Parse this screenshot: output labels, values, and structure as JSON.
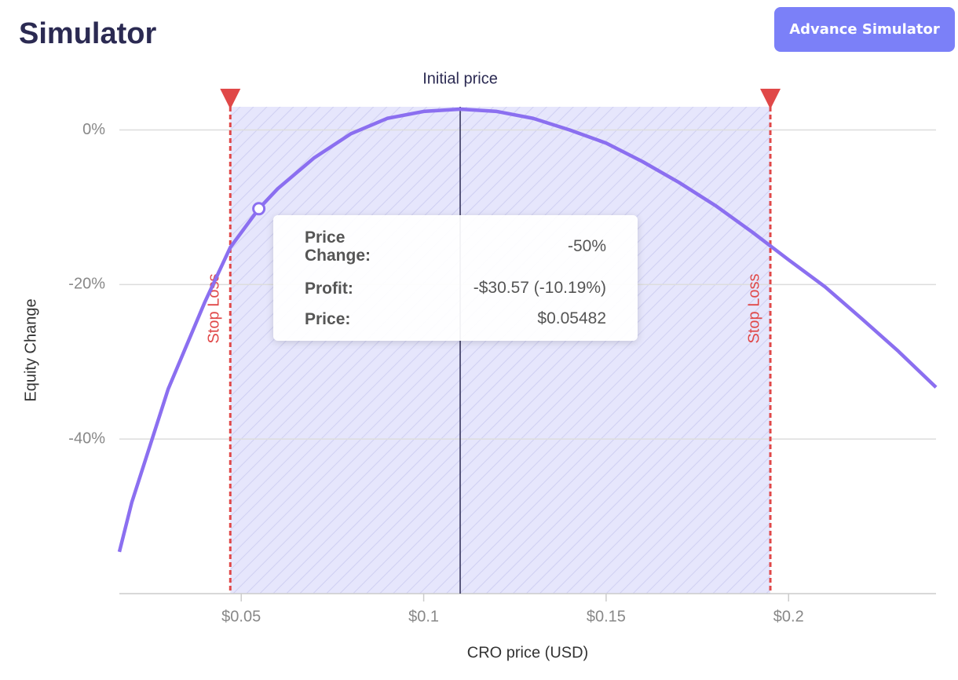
{
  "header": {
    "title": "Simulator",
    "button": "Advance Simulator"
  },
  "chart_data": {
    "type": "line",
    "x_label": "CRO price (USD)",
    "y_label": "Equity Change",
    "x": [
      0.0166,
      0.02,
      0.03,
      0.04,
      0.047,
      0.05482,
      0.06,
      0.07,
      0.08,
      0.09,
      0.1,
      0.11,
      0.12,
      0.13,
      0.14,
      0.15,
      0.16,
      0.17,
      0.18,
      0.19,
      0.2,
      0.21,
      0.22,
      0.23,
      0.2404
    ],
    "series": [
      {
        "name": "Equity Change",
        "color": "#8b6ff0",
        "values": [
          -54.6,
          -48.2,
          -33.5,
          -22.3,
          -15.2,
          -10.19,
          -7.6,
          -3.6,
          -0.5,
          1.5,
          2.4,
          2.7,
          2.4,
          1.5,
          0,
          -1.7,
          -4.1,
          -6.8,
          -9.8,
          -13.2,
          -16.8,
          -20.3,
          -24.4,
          -28.6,
          -33.3
        ]
      }
    ],
    "xlim": [
      0.0166,
      0.2404
    ],
    "ylim": [
      -60,
      3
    ],
    "xticks": [
      {
        "value": 0.05,
        "label": "$0.05"
      },
      {
        "value": 0.1,
        "label": "$0.1"
      },
      {
        "value": 0.15,
        "label": "$0.15"
      },
      {
        "value": 0.2,
        "label": "$0.2"
      }
    ],
    "yticks": [
      {
        "value": 0,
        "label": "0%"
      },
      {
        "value": -20,
        "label": "-20%"
      },
      {
        "value": -40,
        "label": "-40%"
      }
    ],
    "grid": true,
    "initial_price": {
      "x": 0.11,
      "label": "Initial price"
    },
    "stop_losses": [
      {
        "x": 0.047,
        "label": "Stop Loss"
      },
      {
        "x": 0.195,
        "label": "Stop Loss"
      }
    ],
    "stop_color": "#e04848",
    "shade_color": "#e6e6fc",
    "highlight": {
      "x": 0.05482,
      "y": -10.19
    },
    "tooltip": {
      "rows": [
        {
          "label": "Price Change:",
          "value": "-50%"
        },
        {
          "label": "Profit:",
          "value": "-$30.57 (-10.19%)"
        },
        {
          "label": "Price:",
          "value": "$0.05482"
        }
      ]
    }
  }
}
